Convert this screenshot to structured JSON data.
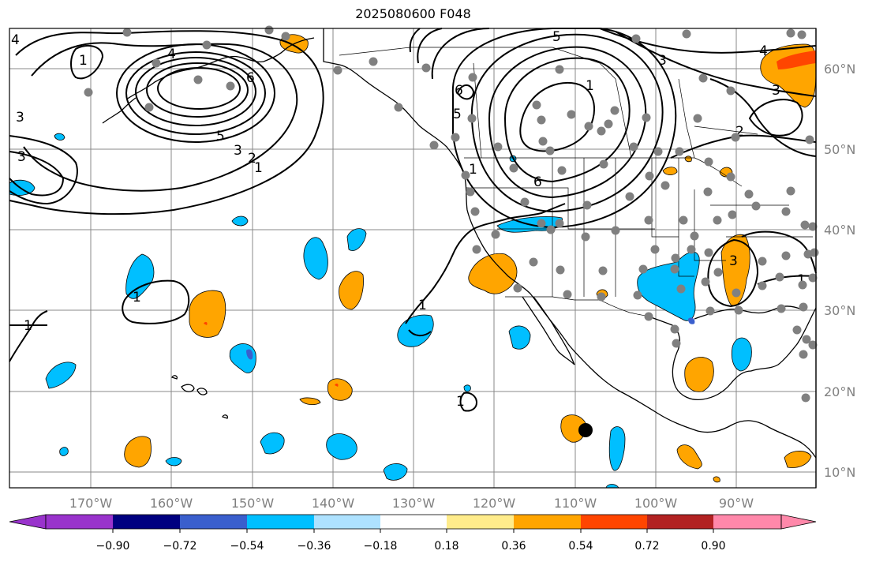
{
  "title": "2025080600 F048",
  "map": {
    "lon_labels": [
      "170°W",
      "160°W",
      "150°W",
      "140°W",
      "130°W",
      "120°W",
      "110°W",
      "100°W",
      "90°W"
    ],
    "lat_labels": [
      "60°N",
      "50°N",
      "40°N",
      "30°N",
      "20°N",
      "10°N"
    ],
    "contour_labels": [
      "4",
      "1",
      "4",
      "6",
      "5",
      "3",
      "2",
      "1",
      "3",
      "3",
      "1",
      "5",
      "6",
      "5",
      "1",
      "6",
      "3",
      "2",
      "3",
      "4",
      "3",
      "1",
      "1",
      "1",
      "1",
      "1"
    ],
    "marker_fill": "#000000",
    "station_color": "#808080"
  },
  "colorbar": {
    "colors": [
      "#9933cc",
      "#000080",
      "#3a5fcd",
      "#00bfff",
      "#aee2ff",
      "#ffffff",
      "#ffec8b",
      "#ffa500",
      "#ff4500",
      "#b22222",
      "#ff88aa"
    ],
    "tick_labels": [
      "−0.90",
      "−0.72",
      "−0.54",
      "−0.36",
      "−0.18",
      "0.18",
      "0.36",
      "0.54",
      "0.72",
      "0.90"
    ]
  }
}
